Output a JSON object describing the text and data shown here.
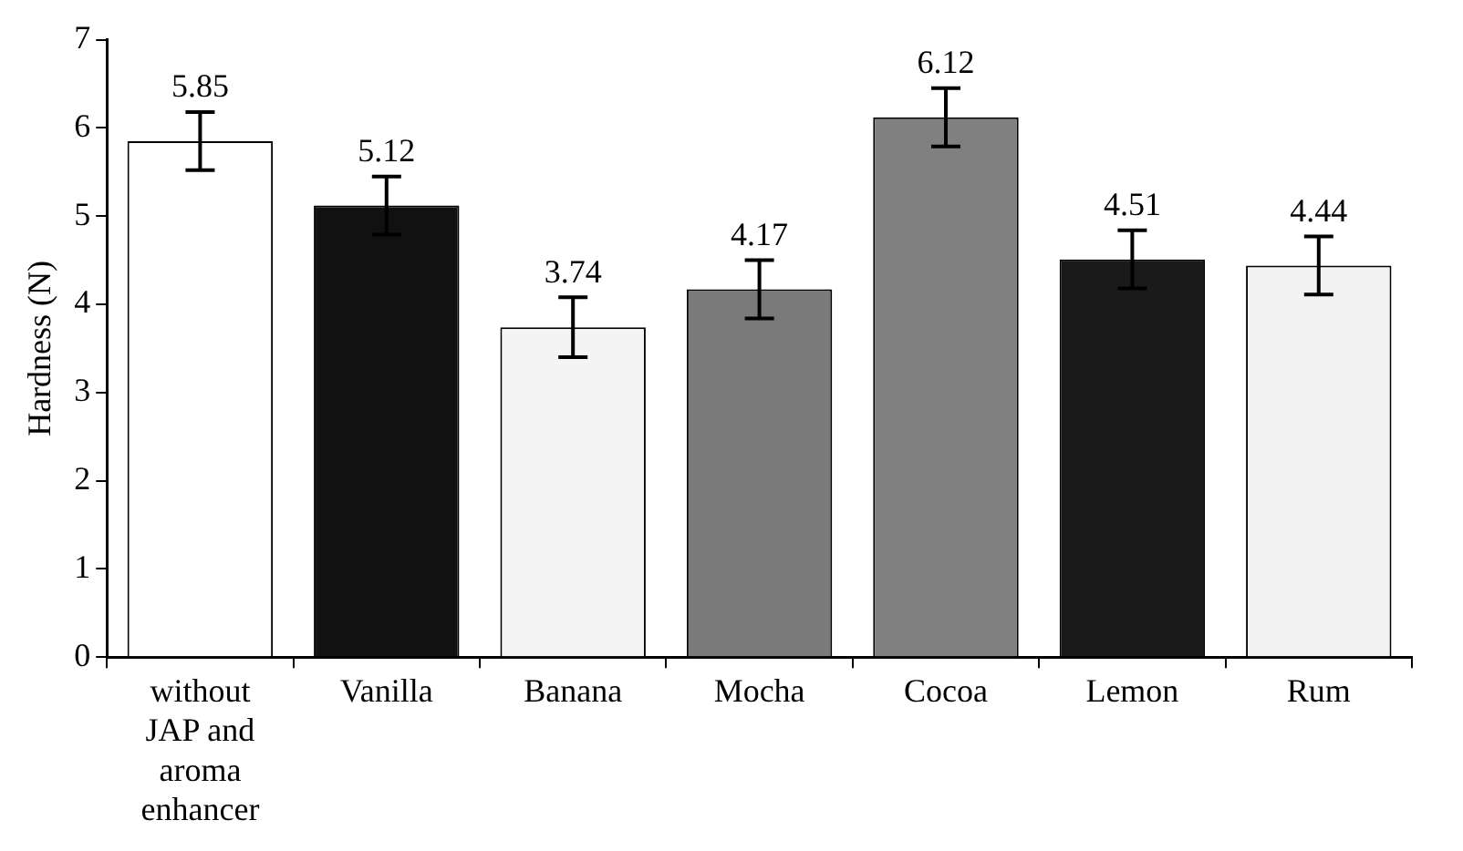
{
  "chart_data": {
    "type": "bar",
    "ylabel": "Hardness (N)",
    "categories": [
      "without JAP and aroma enhancer",
      "Vanilla",
      "Banana",
      "Mocha",
      "Cocoa",
      "Lemon",
      "Rum"
    ],
    "values": [
      5.85,
      5.12,
      3.74,
      4.17,
      6.12,
      4.51,
      4.44
    ],
    "errors": [
      0.33,
      0.33,
      0.34,
      0.33,
      0.33,
      0.33,
      0.33
    ],
    "colors": [
      "#ffffff",
      "#111111",
      "#f4f4f4",
      "#7a7a7a",
      "#808080",
      "#1a1a1a",
      "#f2f2f2"
    ],
    "data_labels": true,
    "ylim": [
      0,
      7
    ],
    "yticks": [
      0,
      1,
      2,
      3,
      4,
      5,
      6,
      7
    ],
    "grid": false,
    "legend": false
  }
}
